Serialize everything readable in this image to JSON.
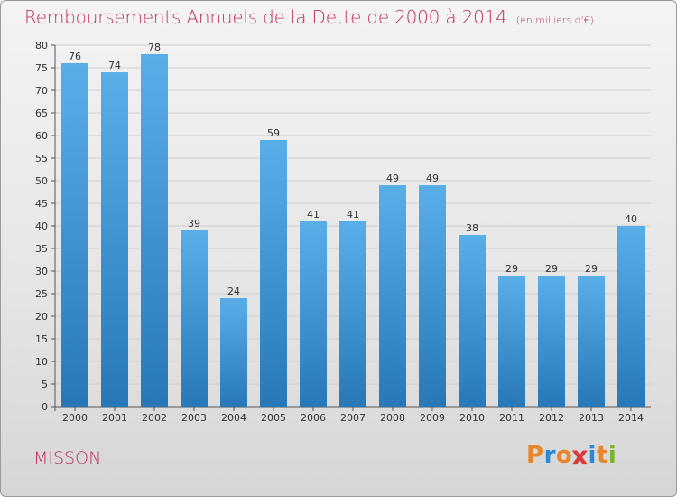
{
  "header": {
    "title": "Remboursements Annuels de la Dette de 2000 à 2014",
    "unit": "(en milliers d'€)"
  },
  "footer": {
    "commune": "MISSON",
    "brand": "Proxiti"
  },
  "colors": {
    "accent": "#c0325e",
    "bar_top": "#5aaee8",
    "bar_bottom": "#2878b8",
    "axis": "#555555",
    "grid": "#cfcfcf",
    "brand_letters": [
      "#e8862a",
      "#2a8ad8",
      "#e8862a",
      "#d63a3a",
      "#2a8ad8",
      "#e8862a",
      "#7ab52a"
    ]
  },
  "chart_data": {
    "type": "bar",
    "title": "Remboursements Annuels de la Dette de 2000 à 2014",
    "subtitle": "(en milliers d'€)",
    "xlabel": "",
    "ylabel": "",
    "categories": [
      "2000",
      "2001",
      "2002",
      "2003",
      "2004",
      "2005",
      "2006",
      "2007",
      "2008",
      "2009",
      "2010",
      "2011",
      "2012",
      "2013",
      "2014"
    ],
    "values": [
      76,
      74,
      78,
      39,
      24,
      59,
      41,
      41,
      49,
      49,
      38,
      29,
      29,
      29,
      40
    ],
    "ylim": [
      0,
      80
    ],
    "yticks": [
      0,
      5,
      10,
      15,
      20,
      25,
      30,
      35,
      40,
      45,
      50,
      55,
      60,
      65,
      70,
      75,
      80
    ],
    "grid": true,
    "data_labels": true
  }
}
